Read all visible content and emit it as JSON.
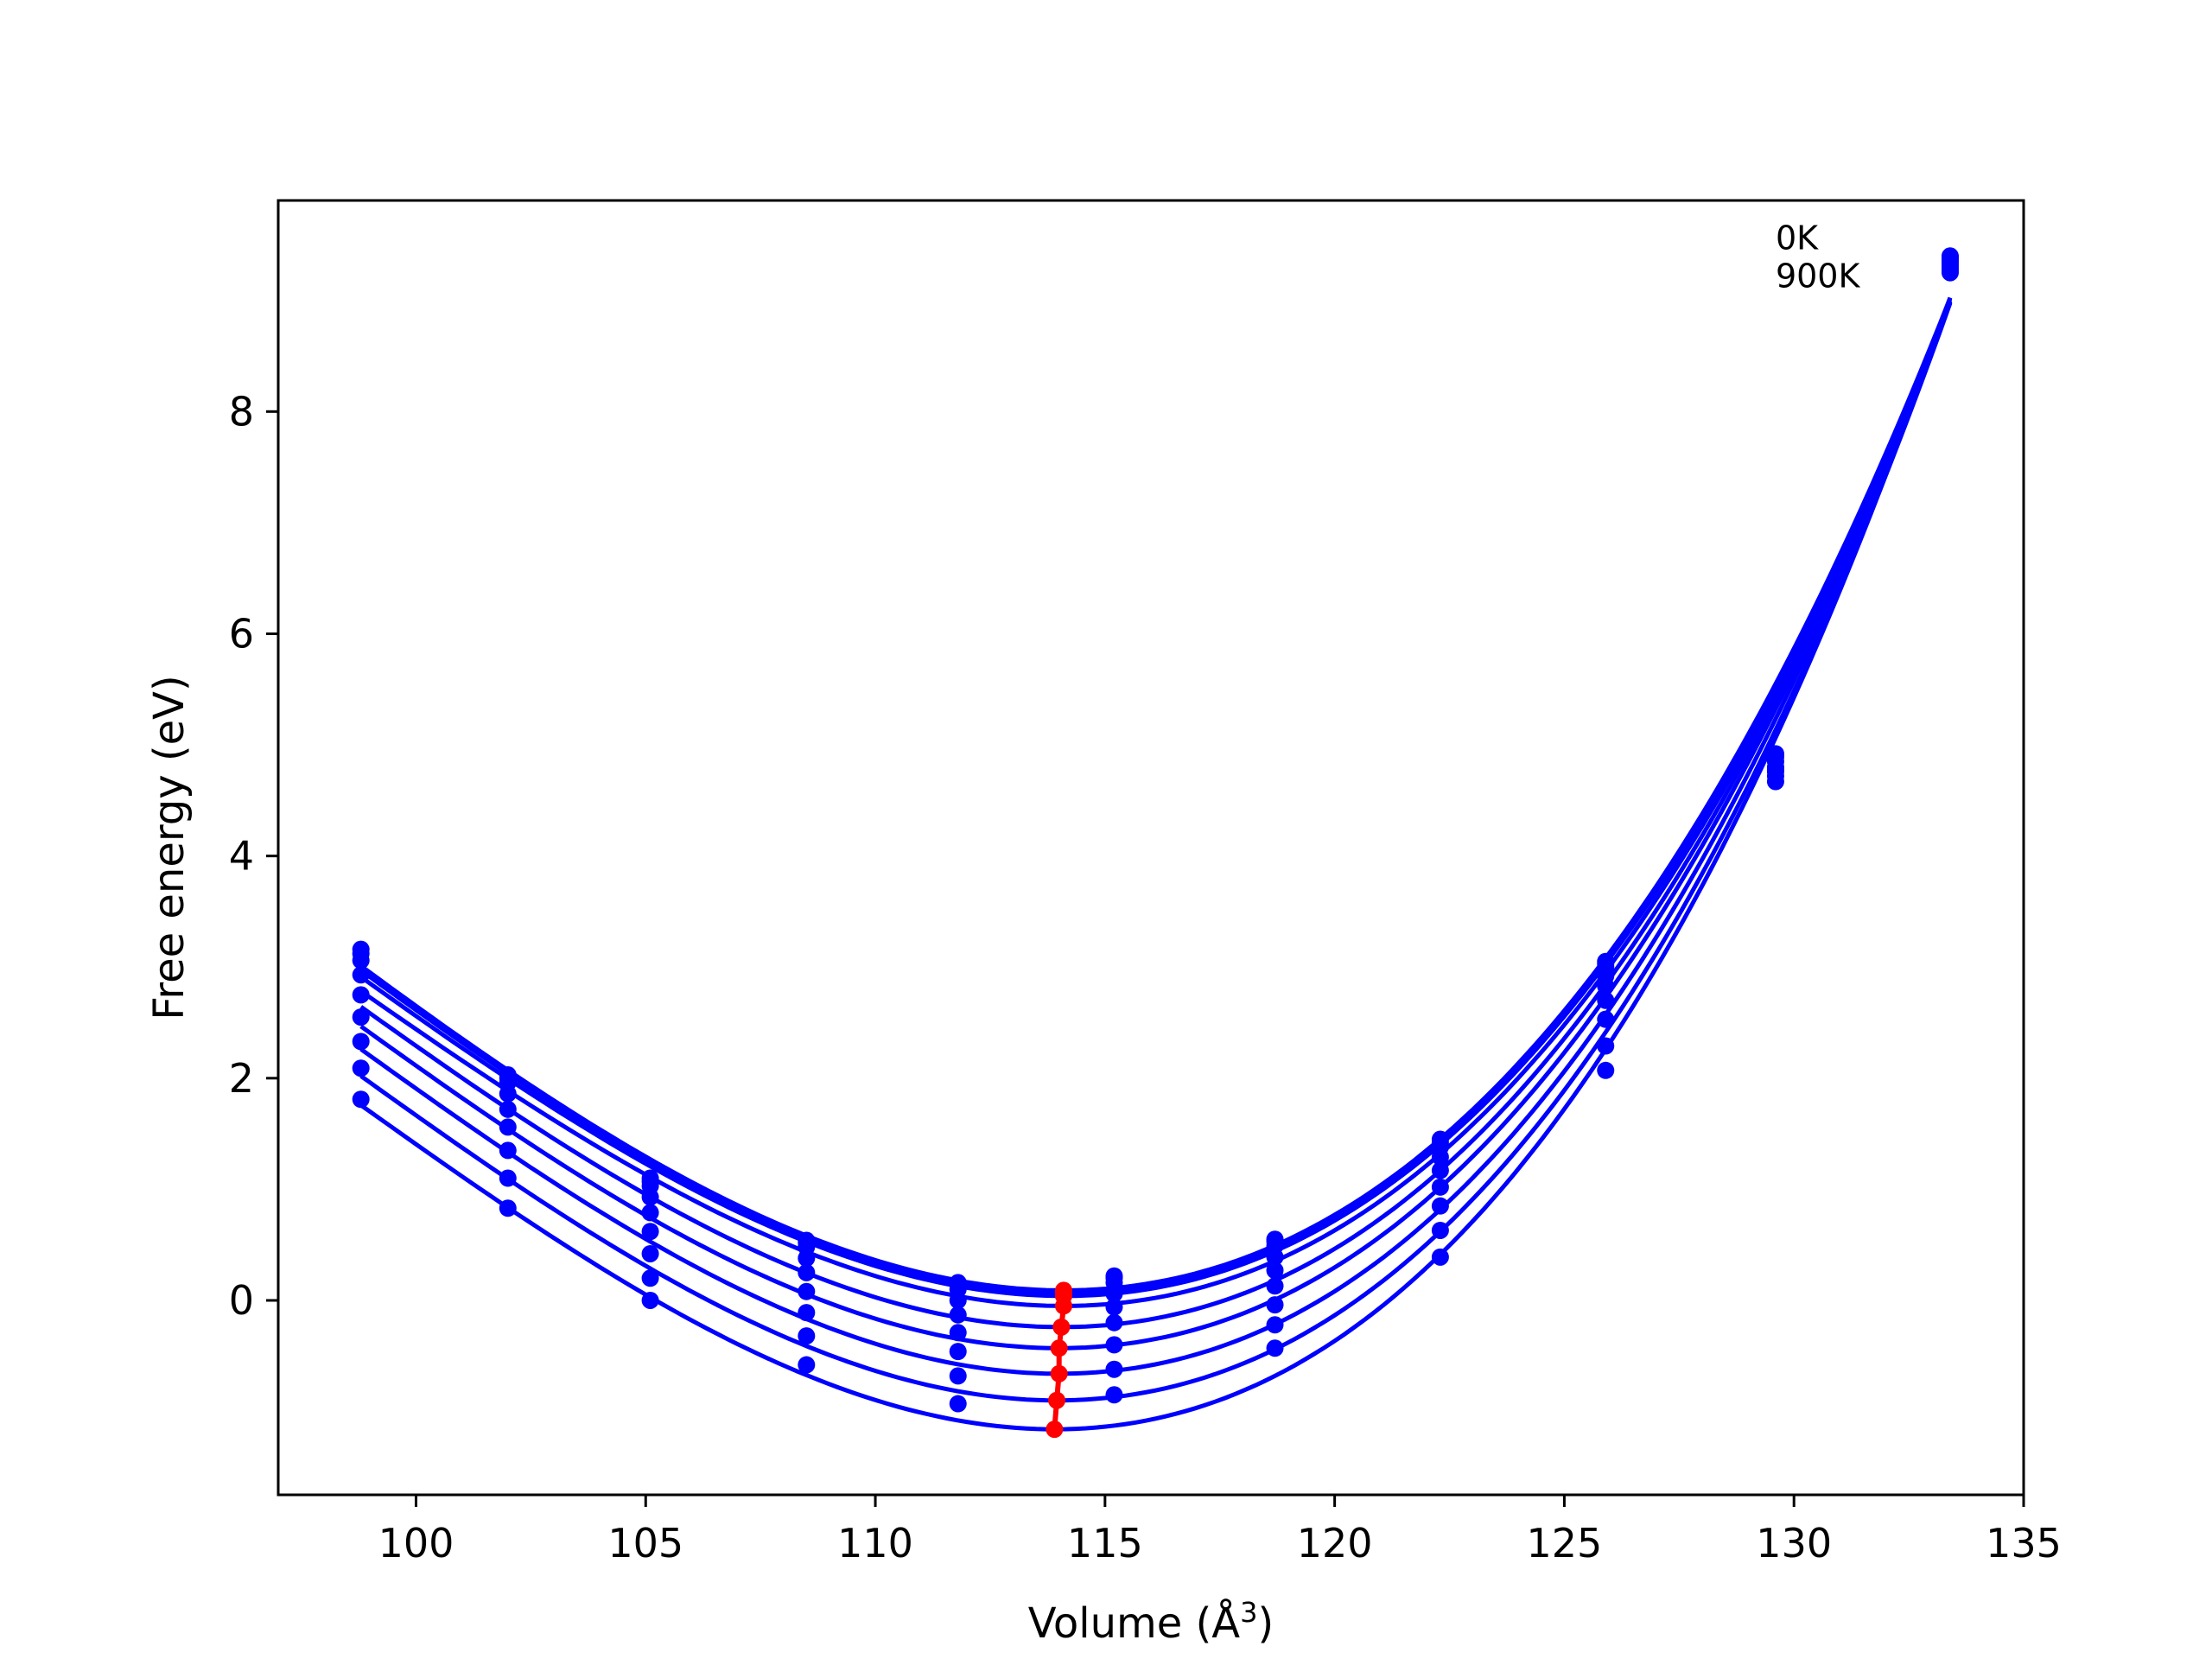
{
  "chart_data": {
    "type": "scatter",
    "title": "",
    "xlabel": "Volume (Å",
    "xlabel_sup": "3",
    "xlabel_close": ")",
    "ylabel": "Free energy (eV)",
    "xlim": [
      97,
      135
    ],
    "ylim": [
      -1.75,
      9.9
    ],
    "x_ticks": [
      100,
      105,
      110,
      115,
      120,
      125,
      130,
      135
    ],
    "y_ticks": [
      0,
      2,
      4,
      6,
      8
    ],
    "grid": false,
    "annotations": [
      "0K",
      "900K"
    ],
    "fit_color": "#0000ff",
    "point_color": "#0000ff",
    "minimum_color": "#ff0000",
    "volumes": [
      98.8,
      102.0,
      105.1,
      108.5,
      111.8,
      115.2,
      118.7,
      122.3,
      125.9,
      129.6,
      133.4
    ],
    "series": [
      {
        "min_volume": 114.1,
        "min_energy": 0.09,
        "points": [
          3.16,
          2.03,
          1.1,
          0.54,
          0.16,
          0.22,
          0.55,
          1.45,
          3.05,
          4.92,
          9.4
        ]
      },
      {
        "min_volume": 114.1,
        "min_energy": 0.07,
        "points": [
          3.12,
          2.0,
          1.07,
          0.52,
          0.14,
          0.2,
          0.53,
          1.42,
          3.03,
          4.91,
          9.39
        ]
      },
      {
        "min_volume": 114.1,
        "min_energy": 0.04,
        "points": [
          3.06,
          1.96,
          1.03,
          0.48,
          0.1,
          0.16,
          0.49,
          1.38,
          3.0,
          4.89,
          9.37
        ]
      },
      {
        "min_volume": 114.1,
        "min_energy": -0.05,
        "points": [
          2.93,
          1.86,
          0.93,
          0.38,
          0.0,
          0.06,
          0.39,
          1.29,
          2.92,
          4.85,
          9.35
        ]
      },
      {
        "min_volume": 114.05,
        "min_energy": -0.24,
        "points": [
          2.75,
          1.72,
          0.79,
          0.25,
          -0.13,
          -0.06,
          0.27,
          1.17,
          2.83,
          4.8,
          9.33
        ]
      },
      {
        "min_volume": 114.0,
        "min_energy": -0.43,
        "points": [
          2.55,
          1.56,
          0.62,
          0.08,
          -0.29,
          -0.2,
          0.13,
          1.02,
          2.7,
          4.77,
          9.31
        ]
      },
      {
        "min_volume": 114.0,
        "min_energy": -0.66,
        "points": [
          2.33,
          1.35,
          0.42,
          -0.11,
          -0.46,
          -0.4,
          -0.04,
          0.85,
          2.53,
          4.72,
          9.29
        ]
      },
      {
        "min_volume": 113.95,
        "min_energy": -0.9,
        "points": [
          2.09,
          1.1,
          0.2,
          -0.32,
          -0.68,
          -0.62,
          -0.22,
          0.63,
          2.29,
          4.67,
          9.27
        ]
      },
      {
        "min_volume": 113.9,
        "min_energy": -1.16,
        "points": [
          1.81,
          0.83,
          0.0,
          -0.58,
          -0.93,
          -0.85,
          -0.43,
          0.39,
          2.07,
          4.76,
          9.25
        ]
      }
    ]
  }
}
